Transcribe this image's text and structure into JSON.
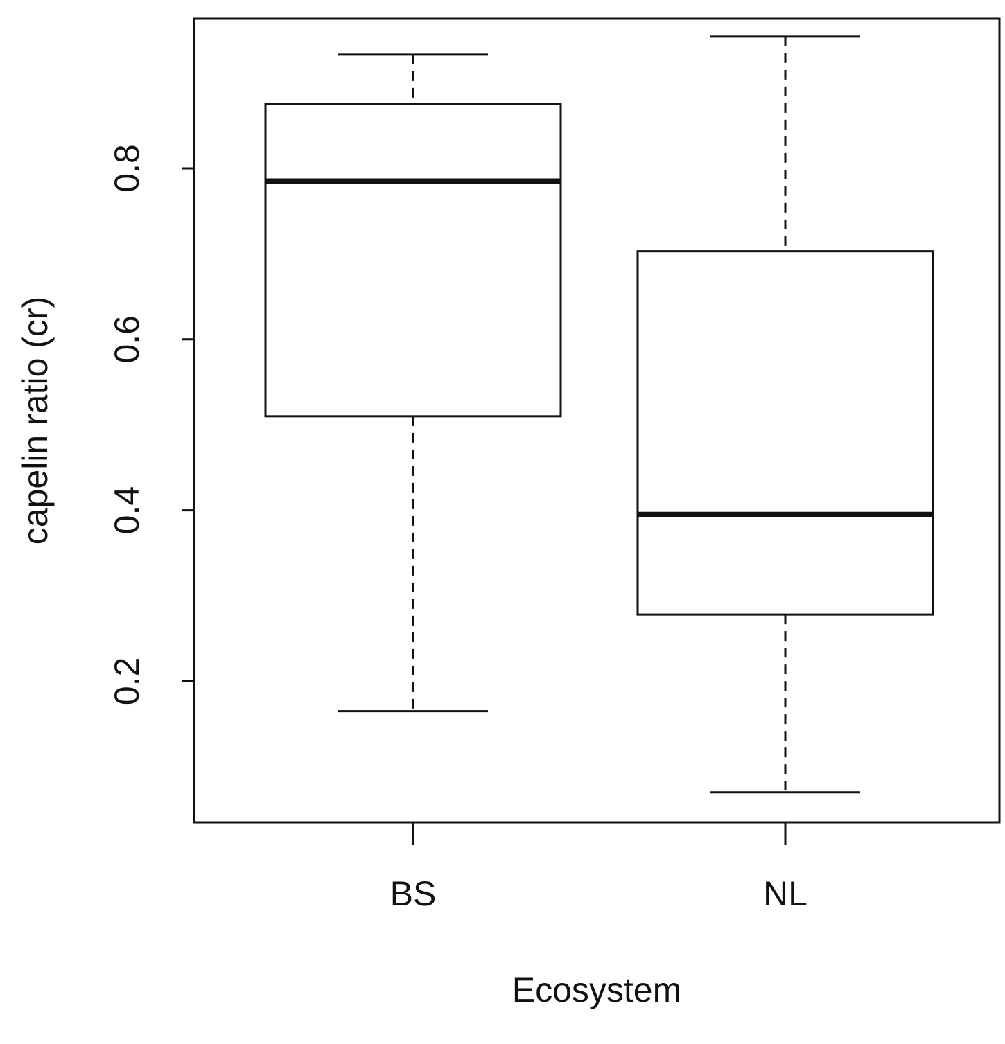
{
  "chart_data": {
    "type": "boxplot",
    "xlabel": "Ecosystem",
    "ylabel": "capelin ratio (cr)",
    "ylim": [
      0.035,
      0.975
    ],
    "yticks": [
      0.2,
      0.4,
      0.6,
      0.8
    ],
    "ytick_labels": [
      "0.2",
      "0.4",
      "0.6",
      "0.8"
    ],
    "categories": [
      "BS",
      "NL"
    ],
    "boxes": [
      {
        "label": "BS",
        "whisker_low": 0.165,
        "q1": 0.51,
        "median": 0.785,
        "q3": 0.875,
        "whisker_high": 0.933
      },
      {
        "label": "NL",
        "whisker_low": 0.07,
        "q1": 0.278,
        "median": 0.395,
        "q3": 0.703,
        "whisker_high": 0.954
      }
    ],
    "grid": false,
    "legend": "none",
    "colors": {
      "stroke": "#111111",
      "fill": "#ffffff"
    }
  }
}
